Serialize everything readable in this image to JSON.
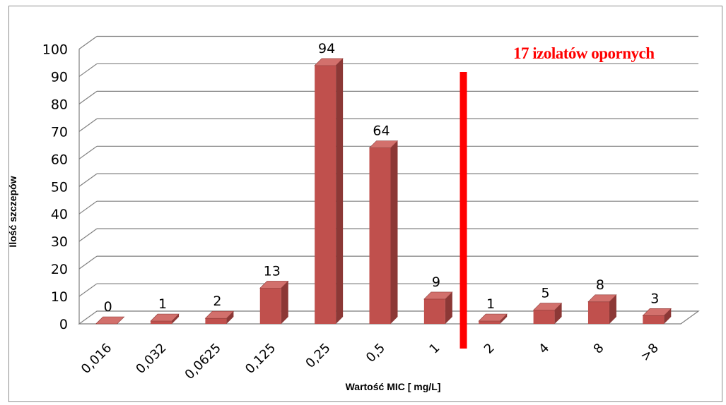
{
  "chart_data": {
    "type": "bar",
    "categories": [
      "0,016",
      "0,032",
      "0,0625",
      "0,125",
      "0,25",
      "0,5",
      "1",
      "2",
      "4",
      "8",
      ">8"
    ],
    "values": [
      0,
      1,
      2,
      13,
      94,
      64,
      9,
      1,
      5,
      8,
      3
    ],
    "data_labels": [
      "0",
      "1",
      "2",
      "13",
      "94",
      "64",
      "9",
      "1",
      "5",
      "8",
      "3"
    ],
    "y_ticks": [
      "0",
      "10",
      "20",
      "30",
      "40",
      "50",
      "60",
      "70",
      "80",
      "90",
      "100"
    ],
    "xlabel": "Wartość MIC [ mg/L]",
    "ylabel": "Ilość szczepów",
    "ylim": [
      0,
      100
    ],
    "grid": true,
    "style": "3d-column",
    "annotation": "17 izolatów opornych",
    "threshold_between": [
      "1",
      "2"
    ],
    "colors": {
      "bar_front": "#c0504d",
      "bar_side": "#8c3836",
      "bar_top": "#d2706c",
      "threshold": "#ff0000",
      "grid": "#7f7f7f"
    }
  }
}
